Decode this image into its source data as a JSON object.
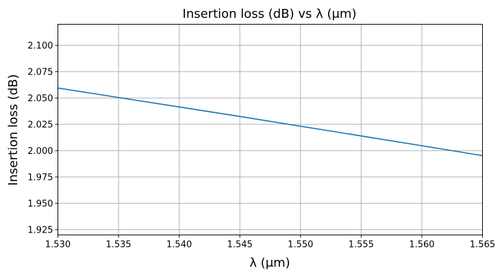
{
  "chart_data": {
    "type": "line",
    "title": "Insertion loss (dB) vs λ (μm)",
    "xlabel": "λ (μm)",
    "ylabel": "Insertion loss (dB)",
    "xlim": [
      1.53,
      1.565
    ],
    "ylim": [
      1.92,
      2.12
    ],
    "xticks": [
      1.53,
      1.535,
      1.54,
      1.545,
      1.55,
      1.555,
      1.56,
      1.565
    ],
    "xtick_labels": [
      "1.530",
      "1.535",
      "1.540",
      "1.545",
      "1.550",
      "1.555",
      "1.560",
      "1.565"
    ],
    "yticks": [
      1.925,
      1.95,
      1.975,
      2.0,
      2.025,
      2.05,
      2.075,
      2.1
    ],
    "ytick_labels": [
      "1.925",
      "1.950",
      "1.975",
      "2.000",
      "2.025",
      "2.050",
      "2.075",
      "2.100"
    ],
    "grid": true,
    "series": [
      {
        "color": "#1f77b4",
        "x": [
          1.53,
          1.535,
          1.54,
          1.545,
          1.55,
          1.555,
          1.56,
          1.565
        ],
        "y": [
          2.0595,
          2.0505,
          2.0415,
          2.0325,
          2.0232,
          2.014,
          2.0047,
          1.9953
        ]
      }
    ]
  }
}
